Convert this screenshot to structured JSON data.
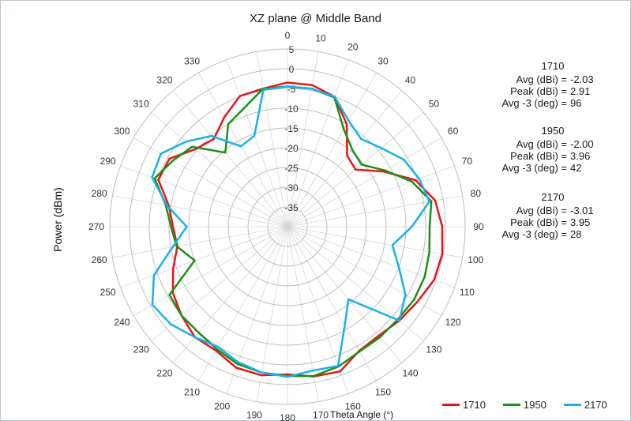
{
  "chart_data": {
    "type": "polar-line",
    "title": "XZ plane @ Middle Band",
    "radial_axis_label": "Power (dBm)",
    "angle_axis_label": "Theta  Angle (°)",
    "radial_range": [
      -40,
      5
    ],
    "radial_ticks": [
      "5",
      "0",
      "-5",
      "-10",
      "-15",
      "-20",
      "-25",
      "-30",
      "-35"
    ],
    "radial_tick_values": [
      5,
      0,
      -5,
      -10,
      -15,
      -20,
      -25,
      -30,
      -35
    ],
    "angle_ticks": [
      "0",
      "10",
      "20",
      "30",
      "40",
      "50",
      "60",
      "70",
      "80",
      "90",
      "100",
      "110",
      "120",
      "130",
      "140",
      "150",
      "160",
      "170",
      "180",
      "190",
      "200",
      "210",
      "220",
      "230",
      "240",
      "250",
      "260",
      "270",
      "280",
      "290",
      "300",
      "310",
      "320",
      "330"
    ],
    "angle_tick_values": [
      0,
      10,
      20,
      30,
      40,
      50,
      60,
      70,
      80,
      90,
      100,
      110,
      120,
      130,
      140,
      150,
      160,
      170,
      180,
      190,
      200,
      210,
      220,
      230,
      240,
      250,
      260,
      270,
      280,
      290,
      300,
      310,
      320,
      330
    ],
    "grid": true,
    "legend_position": "bottom-right",
    "series": [
      {
        "name": "1710",
        "color": "#e8141c",
        "theta": [
          0,
          10,
          20,
          30,
          40,
          50,
          60,
          70,
          80,
          90,
          100,
          110,
          120,
          130,
          140,
          150,
          160,
          170,
          180,
          190,
          200,
          210,
          220,
          230,
          240,
          250,
          260,
          270,
          280,
          290,
          300,
          310,
          320,
          330,
          340,
          350
        ],
        "values": [
          -3.5,
          -3.6,
          -5.0,
          -10.0,
          -16.5,
          -17.5,
          -12.0,
          -5.5,
          -2.0,
          -0.8,
          -0.2,
          -0.5,
          -2.0,
          -3.0,
          -4.0,
          -3.7,
          -1.0,
          -1.5,
          -2.6,
          -1.8,
          -2.0,
          -3.8,
          -3.5,
          -5.0,
          -6.5,
          -9.2,
          -11.7,
          -11.0,
          -9.5,
          -5.2,
          -5.5,
          -9.5,
          -11.0,
          -8.0,
          -4.8,
          -4.5
        ],
        "stats": {
          "Avg (dBi) =": "-2.03",
          "Peak (dBi) =": "2.91",
          "Avg -3 (deg) =": "96"
        }
      },
      {
        "name": "1950",
        "color": "#1b9015",
        "theta": [
          0,
          10,
          20,
          30,
          40,
          50,
          60,
          70,
          80,
          90,
          100,
          110,
          120,
          130,
          140,
          150,
          160,
          170,
          180,
          190,
          200,
          210,
          220,
          230,
          240,
          250,
          260,
          270,
          280,
          290,
          300,
          310,
          320,
          330,
          340,
          350
        ],
        "values": [
          -4.5,
          -4.5,
          -5.2,
          -11.5,
          -14.5,
          -15.5,
          -11.5,
          -6.5,
          -3.0,
          -4.0,
          -3.5,
          -3.0,
          -3.0,
          -3.5,
          -3.5,
          -3.5,
          -2.3,
          -1.6,
          -2.2,
          -2.5,
          -3.0,
          -4.2,
          -5.0,
          -5.0,
          -5.5,
          -15.0,
          -11.5,
          -10.5,
          -8.7,
          -4.2,
          -6.5,
          -8.5,
          -15.5,
          -10.0,
          -8.0,
          -4.5
        ],
        "stats": {
          "Avg (dBi) =": "-2.00",
          "Peak (dBi) =": "3.96",
          "Avg -3 (deg) =": "42"
        }
      },
      {
        "name": "2170",
        "color": "#1ab0e8",
        "theta": [
          0,
          10,
          20,
          30,
          40,
          50,
          60,
          70,
          80,
          90,
          100,
          110,
          120,
          130,
          140,
          150,
          160,
          170,
          180,
          190,
          200,
          210,
          220,
          230,
          240,
          250,
          260,
          270,
          280,
          290,
          300,
          310,
          320,
          330,
          340,
          350
        ],
        "values": [
          -4.5,
          -4.5,
          -5.0,
          -9.0,
          -11.0,
          -9.0,
          -6.0,
          -4.5,
          -3.5,
          -8.5,
          -13.0,
          -10.0,
          -5.5,
          -3.0,
          -16.0,
          -11.0,
          -2.5,
          -3.0,
          -2.0,
          -2.5,
          -3.5,
          -4.8,
          -3.5,
          -1.5,
          -0.5,
          -4.0,
          -10.5,
          -14.5,
          -9.0,
          -3.5,
          -3.0,
          -6.5,
          -10.0,
          -16.5,
          -15.5,
          -4.8
        ],
        "stats": {
          "Avg (dBi) =": "-3.01",
          "Peak (dBi) =": "3.95",
          "Avg -3 (deg) =": "28"
        }
      }
    ]
  }
}
